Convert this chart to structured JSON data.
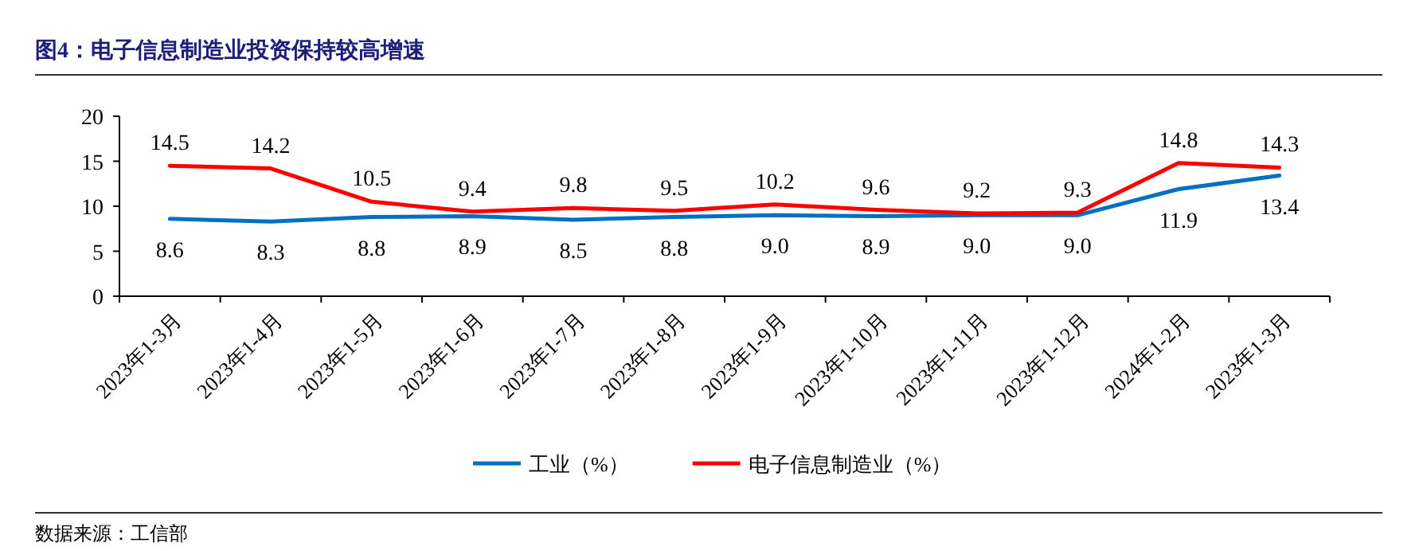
{
  "chart_data": {
    "type": "line",
    "title": "图4：电子信息制造业投资保持较高增速",
    "categories": [
      "2023年1-3月",
      "2023年1-4月",
      "2023年1-5月",
      "2023年1-6月",
      "2023年1-7月",
      "2023年1-8月",
      "2023年1-9月",
      "2023年1-10月",
      "2023年1-11月",
      "2023年1-12月",
      "2024年1-2月",
      "2023年1-3月"
    ],
    "series": [
      {
        "name": "工业（%）",
        "color": "#0070c0",
        "values": [
          8.6,
          8.3,
          8.8,
          8.9,
          8.5,
          8.8,
          9.0,
          8.9,
          9.0,
          9.0,
          11.9,
          13.4
        ],
        "value_labels": [
          "8.6",
          "8.3",
          "8.8",
          "8.9",
          "8.5",
          "8.8",
          "9.0",
          "8.9",
          "9.0",
          "9.0",
          "11.9",
          "13.4"
        ]
      },
      {
        "name": "电子信息制造业（%）",
        "color": "#ff0000",
        "values": [
          14.5,
          14.2,
          10.5,
          9.4,
          9.8,
          9.5,
          10.2,
          9.6,
          9.2,
          9.3,
          14.8,
          14.3
        ],
        "value_labels": [
          "14.5",
          "14.2",
          "10.5",
          "9.4",
          "9.8",
          "9.5",
          "10.2",
          "9.6",
          "9.2",
          "9.3",
          "14.8",
          "14.3"
        ]
      }
    ],
    "ylim": [
      0,
      20
    ],
    "yticks": [
      0,
      5,
      10,
      15,
      20
    ],
    "grid": false,
    "legend": "bottom",
    "marker": "none",
    "line_style": "solid",
    "annotations": [
      "数据来源：工信部"
    ]
  }
}
